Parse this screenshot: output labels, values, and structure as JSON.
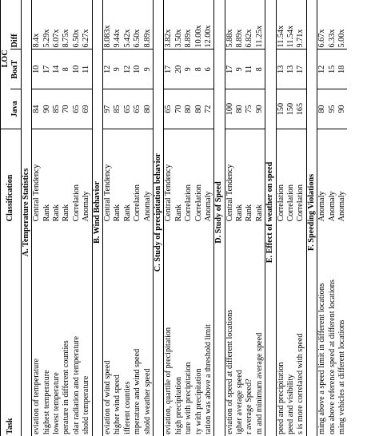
{
  "header": {
    "task": "Task",
    "classification": "Classification",
    "loc": "LOC",
    "java": "Java",
    "boat": "BoaT",
    "diff": "Diff"
  },
  "sections": [
    {
      "title": "A. Temperature Statistics",
      "rows": [
        {
          "task": "eviation of temperature",
          "cls": "Central Tendency",
          "java": "84",
          "boat": "10",
          "diff": "8.4x"
        },
        {
          "task": "highest temperature",
          "cls": "Rank",
          "java": "90",
          "boat": "17",
          "diff": "5.29x"
        },
        {
          "task": "lowest temperature",
          "cls": "Rank",
          "java": "85",
          "boat": "14",
          "diff": "6.07x"
        },
        {
          "task": "perature in different counties",
          "cls": "Rank",
          "java": "70",
          "boat": "8",
          "diff": "8.75x"
        },
        {
          "task": "olar radiation and temperature",
          "cls": "Correlation",
          "java": "65",
          "boat": "10",
          "diff": "6.50x"
        },
        {
          "task": "shold temperature",
          "cls": "Anomaly",
          "java": "69",
          "boat": "11",
          "diff": "6.27x"
        }
      ]
    },
    {
      "title": "B. Wind Behavior",
      "rows": [
        {
          "task": "eviation of wind speed",
          "cls": "Central Tendency",
          "java": "97",
          "boat": "12",
          "diff": "8.083x"
        },
        {
          "task": "higher wind speed",
          "cls": "Rank",
          "java": "85",
          "boat": "9",
          "diff": "9.44x"
        },
        {
          "task": "ifferent counties",
          "cls": "Rank",
          "java": "65",
          "boat": "12",
          "diff": "5.42x"
        },
        {
          "task": "mperature and wind speed",
          "cls": "Correlation",
          "java": "65",
          "boat": "10",
          "diff": "6.50x"
        },
        {
          "task": "shold weather speed",
          "cls": "Anomaly",
          "java": "80",
          "boat": "9",
          "diff": "8.89x"
        }
      ]
    },
    {
      "title": "C. Study of precipitation behavior",
      "rows": [
        {
          "task": "eviation, quartile of precipitation",
          "cls": "Central Tendency",
          "java": "65",
          "boat": "17",
          "diff": "3.82x"
        },
        {
          "task": "high precipitation",
          "cls": "Rank",
          "java": "70",
          "boat": "20",
          "diff": "3.50x"
        },
        {
          "task": "ture with precipitation",
          "cls": "Correlation",
          "java": "80",
          "boat": "9",
          "diff": "8.89x"
        },
        {
          "task": "ty with precipitation",
          "cls": "Correlation",
          "java": "80",
          "boat": "8",
          "diff": "10.00x"
        },
        {
          "task": "tation was above a threshold limit",
          "cls": "Anomaly",
          "java": "72",
          "boat": "6",
          "diff": "12.00x"
        }
      ]
    },
    {
      "title": "D. Study of Speed",
      "rows": [
        {
          "task": "eviation of speed at different locations",
          "cls": "Central Tendency",
          "java": "100",
          "boat": "17",
          "diff": "5.88x"
        },
        {
          "task": "igher average speed",
          "cls": "Rank",
          "java": "80",
          "boat": "9",
          "diff": "8.89x"
        },
        {
          "task": "r average Speed?",
          "cls": "Rank",
          "java": "75",
          "boat": "11",
          "diff": "6.82x"
        },
        {
          "task": "m and minimum average speed",
          "cls": "Rank",
          "java": "90",
          "boat": "8",
          "diff": "11.25x"
        }
      ]
    },
    {
      "title": "E. Effect of weather on speed",
      "rows": [
        {
          "task": "peed and precipitation",
          "cls": "Correlation",
          "java": "150",
          "boat": "13",
          "diff": "11.54x"
        },
        {
          "task": "peed and visibility",
          "cls": "Correlation",
          "java": "150",
          "boat": "13",
          "diff": "11.54x"
        },
        {
          "task": "s is more correlated with speed",
          "cls": "Correlation",
          "java": "165",
          "boat": "17",
          "diff": "9.71x"
        }
      ]
    },
    {
      "title": "F. Speeding Violations",
      "rows": [
        {
          "task": "ming above a speed limit in different locations",
          "cls": "Anomaly",
          "java": "80",
          "boat": "12",
          "diff": "6.67x"
        },
        {
          "task": "ons above reference speed at different locations",
          "cls": "Anomaly",
          "java": "95",
          "boat": "15",
          "diff": "6.33x"
        },
        {
          "task": "ming vehicles at different locations",
          "cls": "Anomaly",
          "java": "90",
          "boat": "18",
          "diff": "5.00x"
        }
      ]
    }
  ]
}
